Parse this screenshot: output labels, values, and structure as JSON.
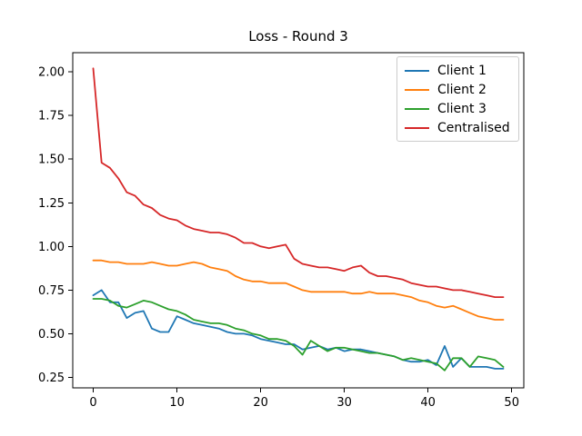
{
  "chart_data": {
    "type": "line",
    "title": "Loss - Round 3",
    "xlabel": "",
    "ylabel": "",
    "grid": false,
    "background": "#ffffff",
    "legend": {
      "position": "upper right"
    },
    "xlim": [
      -2.45,
      51.45
    ],
    "ylim": [
      0.19,
      2.11
    ],
    "xticks": [
      0,
      10,
      20,
      30,
      40,
      50
    ],
    "ytick_labels": [
      "0.25",
      "0.50",
      "0.75",
      "1.00",
      "1.25",
      "1.50",
      "1.75",
      "2.00"
    ],
    "x": [
      0,
      1,
      2,
      3,
      4,
      5,
      6,
      7,
      8,
      9,
      10,
      11,
      12,
      13,
      14,
      15,
      16,
      17,
      18,
      19,
      20,
      21,
      22,
      23,
      24,
      25,
      26,
      27,
      28,
      29,
      30,
      31,
      32,
      33,
      34,
      35,
      36,
      37,
      38,
      39,
      40,
      41,
      42,
      43,
      44,
      45,
      46,
      47,
      48,
      49
    ],
    "series": [
      {
        "name": "Client 1",
        "color": "#1f77b4",
        "values": [
          0.72,
          0.75,
          0.68,
          0.68,
          0.59,
          0.62,
          0.63,
          0.53,
          0.51,
          0.51,
          0.6,
          0.58,
          0.56,
          0.55,
          0.54,
          0.53,
          0.51,
          0.5,
          0.5,
          0.49,
          0.47,
          0.46,
          0.45,
          0.44,
          0.44,
          0.41,
          0.42,
          0.43,
          0.41,
          0.42,
          0.4,
          0.41,
          0.41,
          0.4,
          0.39,
          0.38,
          0.37,
          0.35,
          0.34,
          0.34,
          0.35,
          0.32,
          0.43,
          0.31,
          0.36,
          0.31,
          0.31,
          0.31,
          0.3,
          0.3
        ]
      },
      {
        "name": "Client 2",
        "color": "#ff7f0e",
        "values": [
          0.92,
          0.92,
          0.91,
          0.91,
          0.9,
          0.9,
          0.9,
          0.91,
          0.9,
          0.89,
          0.89,
          0.9,
          0.91,
          0.9,
          0.88,
          0.87,
          0.86,
          0.83,
          0.81,
          0.8,
          0.8,
          0.79,
          0.79,
          0.79,
          0.77,
          0.75,
          0.74,
          0.74,
          0.74,
          0.74,
          0.74,
          0.73,
          0.73,
          0.74,
          0.73,
          0.73,
          0.73,
          0.72,
          0.71,
          0.69,
          0.68,
          0.66,
          0.65,
          0.66,
          0.64,
          0.62,
          0.6,
          0.59,
          0.58,
          0.58
        ]
      },
      {
        "name": "Client 3",
        "color": "#2ca02c",
        "values": [
          0.7,
          0.7,
          0.69,
          0.66,
          0.65,
          0.67,
          0.69,
          0.68,
          0.66,
          0.64,
          0.63,
          0.61,
          0.58,
          0.57,
          0.56,
          0.56,
          0.55,
          0.53,
          0.52,
          0.5,
          0.49,
          0.47,
          0.47,
          0.46,
          0.43,
          0.38,
          0.46,
          0.43,
          0.4,
          0.42,
          0.42,
          0.41,
          0.4,
          0.39,
          0.39,
          0.38,
          0.37,
          0.35,
          0.36,
          0.35,
          0.34,
          0.33,
          0.29,
          0.36,
          0.36,
          0.31,
          0.37,
          0.36,
          0.35,
          0.31
        ]
      },
      {
        "name": "Centralised",
        "color": "#d62728",
        "values": [
          2.02,
          1.48,
          1.45,
          1.39,
          1.31,
          1.29,
          1.24,
          1.22,
          1.18,
          1.16,
          1.15,
          1.12,
          1.1,
          1.09,
          1.08,
          1.08,
          1.07,
          1.05,
          1.02,
          1.02,
          1.0,
          0.99,
          1.0,
          1.01,
          0.93,
          0.9,
          0.89,
          0.88,
          0.88,
          0.87,
          0.86,
          0.88,
          0.89,
          0.85,
          0.83,
          0.83,
          0.82,
          0.81,
          0.79,
          0.78,
          0.77,
          0.77,
          0.76,
          0.75,
          0.75,
          0.74,
          0.73,
          0.72,
          0.71,
          0.71
        ]
      }
    ]
  }
}
